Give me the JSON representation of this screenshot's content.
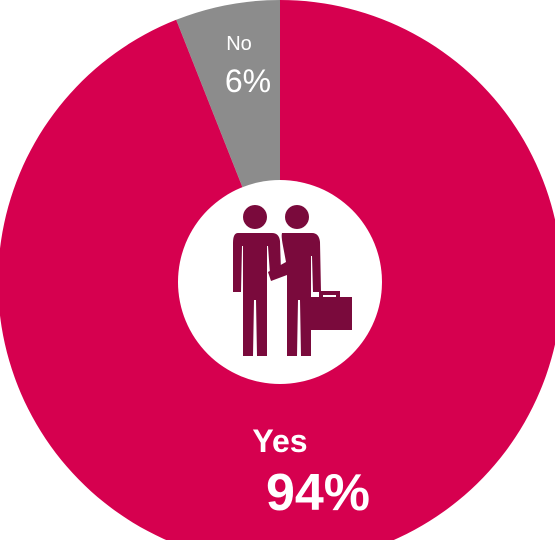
{
  "chart_data": {
    "type": "pie",
    "variant": "donut",
    "slices": [
      {
        "label": "Yes",
        "value": 94,
        "display": "94%",
        "color": "#d6004f"
      },
      {
        "label": "No",
        "value": 6,
        "display": "6%",
        "color": "#8c8c8c"
      }
    ],
    "center_icon": "two-businesspeople-with-briefcase-icon",
    "center_icon_color": "#7a0a3c"
  }
}
